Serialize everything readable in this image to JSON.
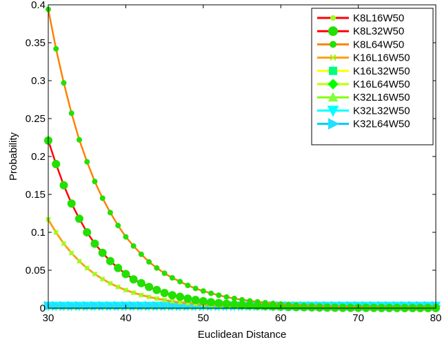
{
  "chart_data": {
    "type": "line",
    "title": "",
    "xlabel": "Euclidean Distance",
    "ylabel": "Probability",
    "xlim": [
      30,
      80
    ],
    "ylim": [
      0,
      0.4
    ],
    "xticks": [
      30,
      40,
      50,
      60,
      70,
      80
    ],
    "yticks": [
      0,
      0.05,
      0.1,
      0.15,
      0.2,
      0.25,
      0.3,
      0.35,
      0.4
    ],
    "xtick_labels": [
      "30",
      "40",
      "50",
      "60",
      "70",
      "80"
    ],
    "ytick_labels": [
      "0",
      "0.05",
      "0.1",
      "0.15",
      "0.2",
      "0.25",
      "0.3",
      "0.35",
      "0.4"
    ],
    "grid": false,
    "legend_position": "top-right",
    "x": [
      30,
      31,
      32,
      33,
      34,
      35,
      36,
      37,
      38,
      39,
      40,
      41,
      42,
      43,
      44,
      45,
      46,
      47,
      48,
      49,
      50,
      51,
      52,
      53,
      54,
      55,
      56,
      57,
      58,
      59,
      60,
      61,
      62,
      63,
      64,
      65,
      66,
      67,
      68,
      69,
      70,
      71,
      72,
      73,
      74,
      75,
      76,
      77,
      78,
      79,
      80
    ],
    "series": [
      {
        "name": "K8L16W50",
        "color": "#ff0000",
        "marker": "dot",
        "values": [
          0.117,
          0.0998,
          0.0851,
          0.0726,
          0.0619,
          0.0528,
          0.045,
          0.0384,
          0.0327,
          0.0279,
          0.0238,
          0.0203,
          0.0173,
          0.0148,
          0.0126,
          0.0107,
          0.0092,
          0.0078,
          0.0067,
          0.0057,
          0.0048,
          0.0041,
          0.0035,
          0.003,
          0.0026,
          0.0022,
          0.0019,
          0.0016,
          0.0014,
          0.0012,
          0.001,
          0.0008,
          0.0007,
          0.0006,
          0.0005,
          0.0004,
          0.0004,
          0.0003,
          0.0003,
          0.0002,
          0.0002,
          0.0002,
          0.0001,
          0.0001,
          0.0001,
          0.0001,
          0.0001,
          0.0001,
          0.0001,
          0.0,
          0.0
        ]
      },
      {
        "name": "K8L32W50",
        "color": "#ff0000",
        "marker": "circle",
        "values": [
          0.221,
          0.19,
          0.162,
          0.138,
          0.118,
          0.1,
          0.085,
          0.073,
          0.062,
          0.053,
          0.045,
          0.038,
          0.033,
          0.028,
          0.024,
          0.02,
          0.017,
          0.015,
          0.0126,
          0.0108,
          0.0092,
          0.0078,
          0.0067,
          0.0057,
          0.0048,
          0.0041,
          0.0035,
          0.003,
          0.0026,
          0.0022,
          0.0019,
          0.0016,
          0.0014,
          0.0012,
          0.001,
          0.0008,
          0.0007,
          0.0006,
          0.0005,
          0.0004,
          0.0004,
          0.0003,
          0.0003,
          0.0002,
          0.0002,
          0.0002,
          0.0001,
          0.0001,
          0.0001,
          0.0001,
          0.0001
        ]
      },
      {
        "name": "K8L64W50",
        "color": "#ff8000",
        "marker": "dot",
        "values": [
          0.394,
          0.342,
          0.297,
          0.257,
          0.222,
          0.193,
          0.167,
          0.145,
          0.126,
          0.109,
          0.094,
          0.082,
          0.071,
          0.061,
          0.053,
          0.046,
          0.04,
          0.035,
          0.03,
          0.026,
          0.0226,
          0.0196,
          0.017,
          0.0147,
          0.0128,
          0.011,
          0.0096,
          0.0083,
          0.0072,
          0.0062,
          0.0054,
          0.0047,
          0.0041,
          0.0035,
          0.0031,
          0.0027,
          0.0023,
          0.002,
          0.0017,
          0.0015,
          0.0013,
          0.0011,
          0.001,
          0.0009,
          0.0007,
          0.0006,
          0.0006,
          0.0005,
          0.0004,
          0.0004,
          0.0003
        ]
      },
      {
        "name": "K16L16W50",
        "color": "#ffa000",
        "marker": "x",
        "values": [
          0.117,
          0.0998,
          0.0851,
          0.0726,
          0.0619,
          0.0528,
          0.045,
          0.0384,
          0.0327,
          0.0279,
          0.0238,
          0.0203,
          0.0173,
          0.0148,
          0.0126,
          0.0107,
          0.0092,
          0.0078,
          0.0067,
          0.0057,
          0.0048,
          0.0041,
          0.0035,
          0.003,
          0.0026,
          0.0022,
          0.0019,
          0.0016,
          0.0014,
          0.0012,
          0.001,
          0.0008,
          0.0007,
          0.0006,
          0.0005,
          0.0004,
          0.0004,
          0.0003,
          0.0003,
          0.0002,
          0.0002,
          0.0002,
          0.0001,
          0.0001,
          0.0001,
          0.0001,
          0.0001,
          0.0001,
          0.0001,
          0.0,
          0.0
        ]
      },
      {
        "name": "K16L32W50",
        "color": "#ffff00",
        "marker": "square",
        "values": [
          0.003,
          0.003,
          0.003,
          0.003,
          0.003,
          0.003,
          0.003,
          0.003,
          0.003,
          0.003,
          0.003,
          0.003,
          0.003,
          0.003,
          0.003,
          0.003,
          0.003,
          0.003,
          0.003,
          0.003,
          0.003,
          0.003,
          0.003,
          0.003,
          0.003,
          0.003,
          0.003,
          0.003,
          0.003,
          0.003,
          0.003,
          0.003,
          0.003,
          0.003,
          0.003,
          0.003,
          0.003,
          0.003,
          0.003,
          0.003,
          0.003,
          0.003,
          0.003,
          0.003,
          0.003,
          0.003,
          0.003,
          0.003,
          0.003,
          0.003,
          0.003
        ]
      },
      {
        "name": "K16L64W50",
        "color": "#c0ff00",
        "marker": "diamond",
        "values": [
          0.003,
          0.003,
          0.003,
          0.003,
          0.003,
          0.003,
          0.003,
          0.003,
          0.003,
          0.003,
          0.003,
          0.003,
          0.003,
          0.003,
          0.003,
          0.003,
          0.003,
          0.003,
          0.003,
          0.003,
          0.003,
          0.003,
          0.003,
          0.003,
          0.003,
          0.003,
          0.003,
          0.003,
          0.003,
          0.003,
          0.003,
          0.003,
          0.003,
          0.003,
          0.003,
          0.003,
          0.003,
          0.003,
          0.003,
          0.003,
          0.003,
          0.003,
          0.003,
          0.003,
          0.003,
          0.003,
          0.003,
          0.003,
          0.003,
          0.003,
          0.003
        ]
      },
      {
        "name": "K32L16W50",
        "color": "#80ff00",
        "marker": "triangle-up",
        "values": [
          0.003,
          0.003,
          0.003,
          0.003,
          0.003,
          0.003,
          0.003,
          0.003,
          0.003,
          0.003,
          0.003,
          0.003,
          0.003,
          0.003,
          0.003,
          0.003,
          0.003,
          0.003,
          0.003,
          0.003,
          0.003,
          0.003,
          0.003,
          0.003,
          0.003,
          0.003,
          0.003,
          0.003,
          0.003,
          0.003,
          0.003,
          0.003,
          0.003,
          0.003,
          0.003,
          0.003,
          0.003,
          0.003,
          0.003,
          0.003,
          0.003,
          0.003,
          0.003,
          0.003,
          0.003,
          0.003,
          0.003,
          0.003,
          0.003,
          0.003,
          0.003
        ]
      },
      {
        "name": "K32L32W50",
        "color": "#00ffff",
        "marker": "triangle-down",
        "values": [
          0.003,
          0.003,
          0.003,
          0.003,
          0.003,
          0.003,
          0.003,
          0.003,
          0.003,
          0.003,
          0.003,
          0.003,
          0.003,
          0.003,
          0.003,
          0.003,
          0.003,
          0.003,
          0.003,
          0.003,
          0.003,
          0.003,
          0.003,
          0.003,
          0.003,
          0.003,
          0.003,
          0.003,
          0.003,
          0.003,
          0.003,
          0.003,
          0.003,
          0.003,
          0.003,
          0.003,
          0.003,
          0.003,
          0.003,
          0.003,
          0.003,
          0.003,
          0.003,
          0.003,
          0.003,
          0.003,
          0.003,
          0.003,
          0.003,
          0.003,
          0.003
        ]
      },
      {
        "name": "K32L64W50",
        "color": "#00c8ff",
        "marker": "triangle-right",
        "values": [
          0.003,
          0.003,
          0.003,
          0.003,
          0.003,
          0.003,
          0.003,
          0.003,
          0.003,
          0.003,
          0.003,
          0.003,
          0.003,
          0.003,
          0.003,
          0.003,
          0.003,
          0.003,
          0.003,
          0.003,
          0.003,
          0.003,
          0.003,
          0.003,
          0.003,
          0.003,
          0.003,
          0.003,
          0.003,
          0.003,
          0.003,
          0.003,
          0.003,
          0.003,
          0.003,
          0.003,
          0.003,
          0.003,
          0.003,
          0.003,
          0.003,
          0.003,
          0.003,
          0.003,
          0.003,
          0.003,
          0.003,
          0.003,
          0.003,
          0.003,
          0.003
        ]
      }
    ]
  },
  "colors": {
    "line_K8L64W50": "#ff8000",
    "line_red": "#ff0000",
    "marker_green": "#22e000",
    "marker_light_green": "#9cff1a",
    "marker_cyan": "#22e0ff"
  }
}
